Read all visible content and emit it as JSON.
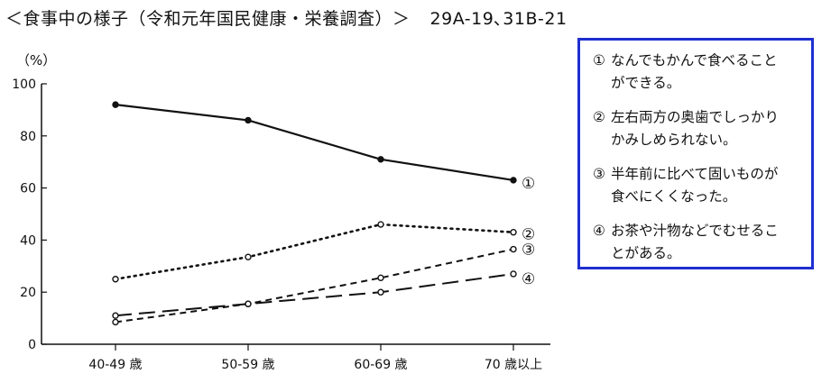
{
  "header": {
    "title": "＜食事中の様子（令和元年国民健康・栄養調査）＞",
    "exam_code": "29A-19､31B-21"
  },
  "chart_data": {
    "type": "line",
    "ylabel": "（%）",
    "ylim": [
      0,
      100
    ],
    "yticks": [
      0,
      20,
      40,
      60,
      80,
      100
    ],
    "categories": [
      "40-49 歳",
      "50-59 歳",
      "60-69 歳",
      "70 歳以上"
    ],
    "grid": false,
    "series": [
      {
        "name": "①",
        "values": [
          92,
          86,
          71,
          63
        ],
        "style": "solid"
      },
      {
        "name": "②",
        "values": [
          25,
          33.5,
          46,
          43
        ],
        "style": "dotted"
      },
      {
        "name": "③",
        "values": [
          8.5,
          15.5,
          25.5,
          36.5
        ],
        "style": "short-dash"
      },
      {
        "name": "④",
        "values": [
          11,
          15.5,
          20,
          27
        ],
        "style": "long-dash"
      }
    ]
  },
  "legend": {
    "items": [
      {
        "num": "①",
        "line1": "なんでもかんで食べること",
        "line2": "ができる。"
      },
      {
        "num": "②",
        "line1": "左右両方の奥歯でしっかり",
        "line2": "かみしめられない。"
      },
      {
        "num": "③",
        "line1": "半年前に比べて固いものが",
        "line2": "食べにくくなった。"
      },
      {
        "num": "④",
        "line1": "お茶や汁物などでむせるこ",
        "line2": "とがある。"
      }
    ],
    "border_color": "#1f2fd0"
  }
}
